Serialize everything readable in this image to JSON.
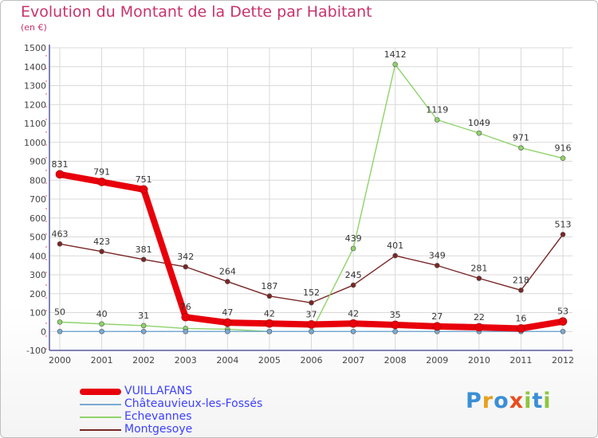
{
  "header": {
    "title": "Evolution du Montant de la Dette par Habitant",
    "unit": "(en €)"
  },
  "logo": {
    "text": "Proxiti",
    "letters": [
      "P",
      "r",
      "o",
      "x",
      "i",
      "t",
      "i"
    ]
  },
  "colors": {
    "title": "#c8336d",
    "axis": "#5a5aa0",
    "grid": "#d9d9d9",
    "tick_label": "#444444"
  },
  "chart_data": {
    "type": "line",
    "title": "Evolution du Montant de la Dette par Habitant",
    "ylabel": "(en €)",
    "xlabel": "",
    "x": [
      "2000",
      "2001",
      "2002",
      "2003",
      "2004",
      "2005",
      "2006",
      "2007",
      "2008",
      "2009",
      "2010",
      "2011",
      "2012"
    ],
    "ylim": [
      -100,
      1500
    ],
    "yticks": [
      -100,
      0,
      100,
      200,
      300,
      400,
      500,
      600,
      700,
      800,
      900,
      1000,
      1100,
      1200,
      1300,
      1400,
      1500
    ],
    "grid": true,
    "legend_position": "bottom-left",
    "series": [
      {
        "name": "Montgesoye",
        "color": "#7a2626",
        "values": [
          463,
          423,
          381,
          342,
          264,
          187,
          152,
          245,
          401,
          349,
          281,
          218,
          513
        ],
        "labels": [
          "463",
          "423",
          "381",
          "342",
          "264",
          "187",
          "152",
          "245",
          "401",
          "349",
          "281",
          "218",
          "513"
        ],
        "thick": false
      },
      {
        "name": "Echevannes",
        "color": "#8fd36a",
        "values": [
          50,
          40,
          31,
          16,
          12,
          0,
          0,
          439,
          1412,
          1119,
          1049,
          971,
          916
        ],
        "labels": [
          "50",
          "40",
          "31",
          "",
          "",
          "",
          "",
          "439",
          "1412",
          "1119",
          "1049",
          "971",
          "916"
        ],
        "thick": false
      },
      {
        "name": "Châteauvieux-les-Fossés",
        "color": "#7aaad3",
        "values": [
          0,
          0,
          0,
          0,
          0,
          0,
          0,
          0,
          0,
          0,
          0,
          0,
          0
        ],
        "labels": [
          "",
          "",
          "",
          "",
          "",
          "",
          "",
          "",
          "",
          "",
          "",
          "",
          ""
        ],
        "thick": false
      },
      {
        "name": "VUILLAFANS",
        "color": "#e8000b",
        "values": [
          831,
          791,
          751,
          76,
          47,
          42,
          37,
          42,
          35,
          27,
          22,
          16,
          53
        ],
        "labels": [
          "831",
          "791",
          "751",
          "76",
          "47",
          "42",
          "37",
          "42",
          "35",
          "27",
          "22",
          "16",
          "53"
        ],
        "thick": true
      }
    ],
    "legend": [
      {
        "name": "VUILLAFANS",
        "color": "#e8000b",
        "thick": true
      },
      {
        "name": "Châteauvieux-les-Fossés",
        "color": "#7aaad3",
        "thick": false
      },
      {
        "name": "Echevannes",
        "color": "#8fd36a",
        "thick": false
      },
      {
        "name": "Montgesoye",
        "color": "#7a2626",
        "thick": false
      }
    ]
  }
}
